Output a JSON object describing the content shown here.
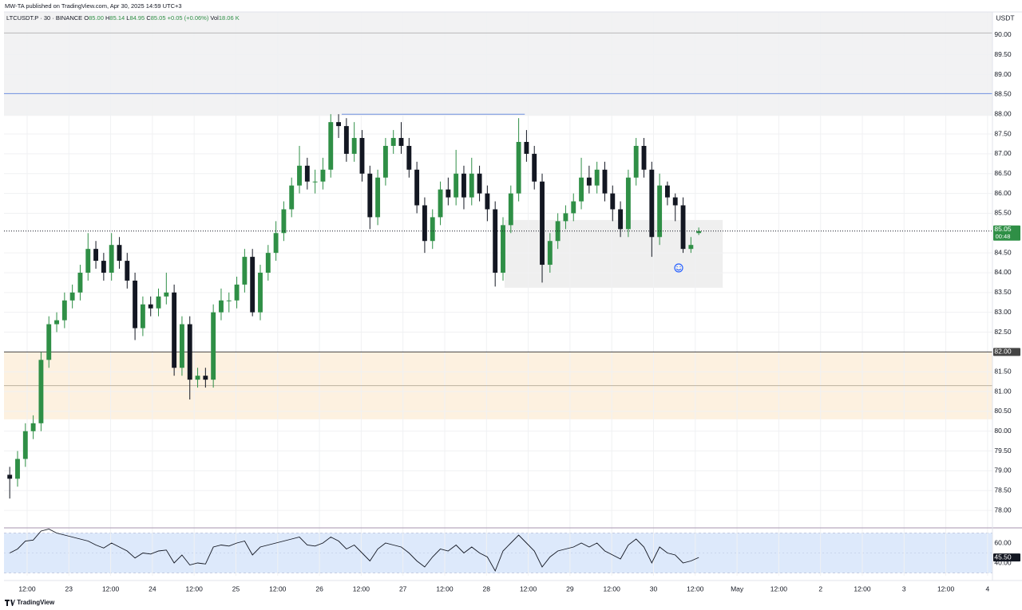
{
  "header": {
    "attribution": "MW-TA published on TradingView.com, Apr 30, 2025 14:59 UTC+3",
    "footer": "TradingView"
  },
  "chart_data": {
    "type": "candlestick",
    "symbol": "LTCUSDT.P · 30 · BINANCE",
    "ohlc_legend": {
      "open_label": "O",
      "open": "85.00",
      "high_label": "H",
      "high": "85.14",
      "low_label": "L",
      "low": "84.95",
      "close_label": "C",
      "close": "85.05",
      "change": "+0.05 (+0.06%)",
      "volume_label": "Vol",
      "volume": "18.06 K"
    },
    "y_axis_label": "USDT",
    "x": [
      7,
      9.25,
      11.5,
      13.75,
      16,
      18.25,
      20.5,
      22.75,
      25,
      27.25,
      29.5,
      31.75,
      34,
      36.25,
      38.5,
      40.75,
      43,
      45.25,
      47.5,
      49.75,
      52,
      54.25,
      56.5,
      58.75,
      61,
      63.25,
      65.5,
      67.75,
      70,
      72.25,
      74.5,
      76.75,
      79,
      81.25,
      83.5,
      85.75,
      88,
      90.25,
      92.5,
      94.75,
      97,
      99.25,
      101.5,
      103.75,
      106,
      108.25,
      110.5,
      112.75,
      115,
      117.25,
      119.5,
      121.75,
      124,
      126.25,
      128.5,
      130.75,
      133,
      135.25,
      137.5,
      139.75,
      142,
      144.25,
      146.5,
      148.75,
      151,
      153.25,
      155.5,
      157.75,
      160,
      162.25,
      164.5,
      166.75,
      169,
      171.25,
      173.5,
      175.75,
      178,
      180.25,
      182.5,
      184.75,
      187,
      189.25,
      191.5,
      193.75,
      196,
      198.25,
      200.5,
      202.75,
      205
    ],
    "open": [
      78.9,
      78.8,
      79.3,
      80.0,
      80.2,
      81.8,
      82.7,
      82.8,
      83.3,
      83.5,
      84.0,
      84.6,
      84.3,
      84.0,
      84.7,
      84.3,
      83.8,
      82.6,
      83.2,
      83.1,
      83.4,
      83.5,
      81.6,
      82.7,
      81.3,
      81.4,
      81.3,
      83.0,
      83.3,
      83.3,
      83.7,
      84.4,
      83.0,
      84.0,
      84.5,
      85.0,
      85.6,
      86.2,
      86.7,
      86.3,
      86.3,
      86.6,
      87.8,
      87.7,
      87.0,
      87.4,
      86.5,
      85.4,
      86.4,
      87.2,
      87.4,
      87.2,
      86.6,
      85.7,
      84.8,
      85.4,
      86.1,
      85.9,
      86.5,
      85.9,
      86.5,
      86.0,
      85.6,
      84.0,
      85.2,
      86.0,
      87.3,
      87.0,
      86.3,
      84.2,
      84.8,
      85.3,
      85.5,
      85.8,
      86.4,
      86.2,
      86.6,
      86.0,
      85.6,
      85.1,
      86.4,
      87.2,
      86.6,
      84.9,
      86.2,
      85.9,
      85.7,
      84.6,
      85.0
    ],
    "high": [
      79.1,
      79.5,
      80.2,
      80.4,
      82.0,
      82.9,
      83.0,
      83.5,
      83.7,
      84.2,
      85.0,
      84.8,
      84.5,
      85.0,
      84.9,
      84.5,
      84.0,
      83.4,
      83.4,
      83.6,
      84.0,
      83.7,
      82.9,
      82.9,
      81.6,
      81.6,
      83.2,
      83.6,
      83.5,
      83.9,
      84.6,
      84.6,
      84.2,
      84.7,
      85.3,
      85.8,
      86.4,
      87.2,
      86.9,
      86.6,
      86.9,
      88.0,
      88.0,
      87.9,
      87.8,
      87.6,
      86.7,
      86.6,
      87.4,
      87.6,
      87.8,
      87.4,
      86.8,
      85.9,
      85.6,
      86.3,
      86.4,
      87.1,
      86.7,
      86.9,
      86.7,
      86.2,
      85.8,
      85.4,
      86.2,
      87.9,
      87.6,
      87.2,
      86.5,
      85.0,
      85.5,
      85.7,
      86.0,
      86.9,
      86.7,
      86.8,
      86.8,
      86.2,
      85.8,
      86.6,
      87.4,
      87.4,
      86.8,
      86.5,
      86.3,
      86.0,
      85.9,
      84.9,
      85.14
    ],
    "low": [
      78.3,
      78.6,
      79.1,
      79.8,
      80.0,
      81.6,
      82.5,
      82.6,
      83.1,
      83.3,
      83.8,
      84.1,
      83.8,
      83.8,
      84.1,
      83.6,
      82.3,
      82.4,
      82.9,
      82.9,
      83.2,
      81.4,
      81.4,
      80.8,
      81.1,
      81.1,
      81.1,
      82.8,
      83.0,
      83.1,
      83.5,
      82.9,
      82.8,
      83.8,
      84.3,
      84.8,
      85.4,
      86.0,
      86.1,
      86.0,
      86.1,
      86.4,
      87.4,
      86.8,
      86.8,
      86.3,
      85.1,
      85.2,
      86.2,
      87.0,
      87.0,
      86.4,
      85.5,
      84.5,
      84.6,
      85.2,
      85.7,
      85.7,
      85.6,
      85.7,
      85.8,
      85.3,
      83.65,
      83.8,
      85.0,
      85.8,
      86.8,
      86.1,
      83.75,
      84.0,
      84.6,
      85.1,
      85.3,
      85.6,
      86.0,
      86.0,
      85.8,
      85.3,
      84.9,
      84.9,
      86.2,
      86.4,
      84.4,
      84.7,
      85.7,
      85.3,
      84.5,
      84.5,
      84.95
    ],
    "close": [
      78.8,
      79.3,
      80.0,
      80.2,
      81.8,
      82.7,
      82.8,
      83.3,
      83.5,
      84.0,
      84.6,
      84.3,
      84.0,
      84.7,
      84.3,
      83.8,
      82.6,
      83.2,
      83.1,
      83.4,
      83.5,
      81.6,
      82.7,
      81.3,
      81.4,
      81.3,
      83.0,
      83.3,
      83.3,
      83.7,
      84.4,
      83.0,
      84.0,
      84.5,
      85.0,
      85.6,
      86.2,
      86.7,
      86.3,
      86.3,
      86.6,
      87.8,
      87.7,
      87.0,
      87.4,
      86.5,
      85.4,
      86.4,
      87.2,
      87.4,
      87.2,
      86.6,
      85.7,
      84.8,
      85.4,
      86.1,
      85.9,
      86.5,
      85.9,
      86.5,
      86.0,
      85.6,
      84.0,
      85.2,
      86.0,
      87.3,
      87.0,
      86.3,
      84.2,
      84.8,
      85.3,
      85.5,
      85.8,
      86.4,
      86.2,
      86.6,
      86.0,
      85.6,
      85.1,
      86.4,
      87.2,
      86.6,
      84.9,
      86.2,
      85.9,
      85.7,
      84.6,
      84.7,
      85.05
    ],
    "up_color": "#2f8f46",
    "down_color": "#131722",
    "xlim": [
      5.35,
      289.4
    ],
    "xticks": [
      {
        "value": 12,
        "label": "12:00"
      },
      {
        "value": 24,
        "label": "23"
      },
      {
        "value": 36,
        "label": "12:00"
      },
      {
        "value": 48,
        "label": "24"
      },
      {
        "value": 60,
        "label": "12:00"
      },
      {
        "value": 72,
        "label": "25"
      },
      {
        "value": 84,
        "label": "12:00"
      },
      {
        "value": 96,
        "label": "26"
      },
      {
        "value": 108,
        "label": "12:00"
      },
      {
        "value": 120,
        "label": "27"
      },
      {
        "value": 132,
        "label": "12:00"
      },
      {
        "value": 144,
        "label": "28"
      },
      {
        "value": 156,
        "label": "12:00"
      },
      {
        "value": 168,
        "label": "29"
      },
      {
        "value": 180,
        "label": "12:00"
      },
      {
        "value": 192,
        "label": "30"
      },
      {
        "value": 204,
        "label": "12:00"
      },
      {
        "value": 216,
        "label": "May"
      },
      {
        "value": 228,
        "label": "12:00"
      },
      {
        "value": 240,
        "label": "2"
      },
      {
        "value": 252,
        "label": "12:00"
      },
      {
        "value": 264,
        "label": "3"
      },
      {
        "value": 276,
        "label": "12:00"
      },
      {
        "value": 288,
        "label": "4"
      }
    ],
    "ylim": [
      77.56,
      90.58
    ],
    "yticks": [
      {
        "value": 78,
        "label": "78.00"
      },
      {
        "value": 78.5,
        "label": "78.50"
      },
      {
        "value": 79,
        "label": "79.00"
      },
      {
        "value": 79.5,
        "label": "79.50"
      },
      {
        "value": 80,
        "label": "80.00"
      },
      {
        "value": 80.5,
        "label": "80.50"
      },
      {
        "value": 81,
        "label": "81.00"
      },
      {
        "value": 81.5,
        "label": "81.50"
      },
      {
        "value": 82.5,
        "label": "82.50"
      },
      {
        "value": 83,
        "label": "83.00"
      },
      {
        "value": 83.5,
        "label": "83.50"
      },
      {
        "value": 84,
        "label": "84.00"
      },
      {
        "value": 84.5,
        "label": "84.50"
      },
      {
        "value": 85.5,
        "label": "85.50"
      },
      {
        "value": 86,
        "label": "86.00"
      },
      {
        "value": 86.5,
        "label": "86.50"
      },
      {
        "value": 87,
        "label": "87.00"
      },
      {
        "value": 87.5,
        "label": "87.50"
      },
      {
        "value": 88,
        "label": "88.00"
      },
      {
        "value": 88.5,
        "label": "88.50"
      },
      {
        "value": 89,
        "label": "89.00"
      },
      {
        "value": 89.5,
        "label": "89.50"
      },
      {
        "value": 90,
        "label": "90.00"
      }
    ],
    "grid": true,
    "last_price": {
      "value": 85.05,
      "label": "85.05"
    },
    "countdown": "00:48",
    "zones": [
      {
        "y": [
          87.96,
          90.58
        ],
        "color": "#f2f2f3"
      },
      {
        "y": [
          80.3,
          82.0
        ],
        "color": "#fdf1e0"
      }
    ],
    "levels": [
      {
        "y": 90.05,
        "color": "#b8b8b8"
      },
      {
        "y": 88.52,
        "color": "#6f8fe0"
      },
      {
        "y": 81.15,
        "color": "#bdb2a0"
      },
      {
        "y": {
          "value": 82,
          "label": "82.00"
        },
        "color": "#444444"
      }
    ],
    "boxes": [
      {
        "x": [
          149.2,
          211.9
        ],
        "y": [
          83.62,
          85.33
        ],
        "color": "#efefef"
      }
    ],
    "segments": [
      {
        "x": [
          102.4,
          155
        ],
        "y": 88.0,
        "color": "#6f8fe0"
      }
    ],
    "rsi": {
      "values": [
        50,
        54,
        62,
        63,
        72,
        74,
        70,
        68,
        66,
        64,
        62,
        58,
        55,
        60,
        56,
        52,
        45,
        50,
        49,
        52,
        53,
        40,
        48,
        38,
        40,
        39,
        56,
        58,
        57,
        60,
        62,
        48,
        56,
        58,
        60,
        62,
        64,
        66,
        58,
        57,
        60,
        66,
        62,
        54,
        58,
        50,
        42,
        54,
        60,
        58,
        56,
        50,
        42,
        36,
        46,
        54,
        52,
        58,
        50,
        56,
        50,
        46,
        32,
        52,
        60,
        68,
        60,
        52,
        36,
        46,
        52,
        54,
        56,
        60,
        56,
        60,
        52,
        48,
        44,
        58,
        64,
        56,
        40,
        56,
        50,
        48,
        40,
        42,
        45.5
      ],
      "color": "#131722",
      "ylim": [
        27.2,
        75.2
      ],
      "yticks": [
        {
          "value": 60,
          "label": "60.00"
        },
        {
          "value": 40,
          "label": "40.00"
        }
      ],
      "band": [
        30,
        70
      ],
      "band_color": "#dde9fb",
      "midline": 50,
      "last_value": {
        "value": 45.5,
        "label": "45.50"
      }
    }
  }
}
